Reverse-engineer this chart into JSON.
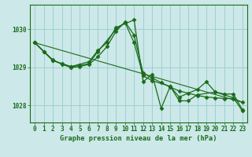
{
  "title": "Graphe pression niveau de la mer (hPa)",
  "bg_color": "#cce8e8",
  "grid_color": "#99cccc",
  "line_color": "#1a6b1a",
  "xlim": [
    0,
    23
  ],
  "ylim": [
    1027.55,
    1030.65
  ],
  "yticks": [
    1028,
    1029,
    1030
  ],
  "xticks": [
    0,
    1,
    2,
    3,
    4,
    5,
    6,
    7,
    8,
    9,
    10,
    11,
    12,
    13,
    14,
    15,
    16,
    17,
    18,
    19,
    20,
    21,
    22,
    23
  ],
  "series1_x": [
    0,
    1,
    2,
    3,
    4,
    5,
    6,
    7,
    8,
    9,
    10,
    11,
    12,
    13,
    14,
    15,
    16,
    17,
    18,
    19,
    20,
    21,
    22,
    23
  ],
  "series1_y": [
    1029.65,
    1029.42,
    1029.2,
    1029.08,
    1029.0,
    1029.02,
    1029.08,
    1029.28,
    1029.55,
    1029.95,
    1030.2,
    1029.85,
    1028.85,
    1028.72,
    1028.6,
    1028.48,
    1028.38,
    1028.32,
    1028.26,
    1028.22,
    1028.2,
    1028.18,
    1028.18,
    1028.08
  ],
  "series2_x": [
    0,
    1,
    2,
    4,
    5,
    6,
    7,
    9,
    10,
    11,
    12,
    13,
    15,
    16,
    17,
    18,
    20,
    22,
    23
  ],
  "series2_y": [
    1029.65,
    1029.42,
    1029.18,
    1029.02,
    1029.05,
    1029.1,
    1029.42,
    1030.0,
    1030.18,
    1029.65,
    1028.78,
    1028.65,
    1028.5,
    1028.12,
    1028.12,
    1028.28,
    1028.35,
    1028.2,
    1027.85
  ],
  "series3_x": [
    0,
    2,
    3,
    4,
    6,
    7,
    8,
    9,
    11,
    12,
    13,
    14,
    15,
    16,
    18,
    19,
    20,
    21,
    22,
    23
  ],
  "series3_y": [
    1029.65,
    1029.18,
    1029.1,
    1029.02,
    1029.15,
    1029.45,
    1029.65,
    1030.05,
    1030.25,
    1028.62,
    1028.82,
    1027.92,
    1028.5,
    1028.22,
    1028.42,
    1028.62,
    1028.35,
    1028.3,
    1028.3,
    1027.88
  ],
  "series4_x": [
    0,
    23
  ],
  "series4_y": [
    1029.65,
    1028.08
  ]
}
